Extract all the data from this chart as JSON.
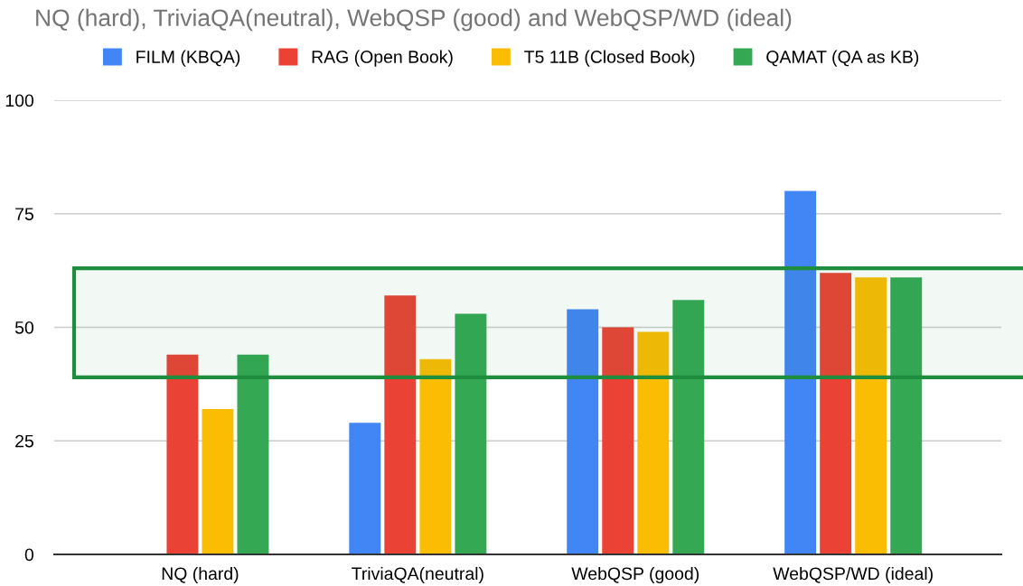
{
  "chart_data": {
    "type": "bar",
    "title": "NQ (hard), TriviaQA(neutral), WebQSP (good) and WebQSP/WD (ideal)",
    "categories": [
      "NQ (hard)",
      "TriviaQA(neutral)",
      "WebQSP (good)",
      "WebQSP/WD (ideal)"
    ],
    "series": [
      {
        "name": "FILM (KBQA)",
        "color": "#4285f4",
        "values": [
          null,
          29,
          54,
          80
        ]
      },
      {
        "name": "RAG (Open Book)",
        "color": "#ea4335",
        "values": [
          44,
          57,
          50,
          62
        ]
      },
      {
        "name": "T5 11B (Closed Book)",
        "color": "#fbbc04",
        "values": [
          32,
          43,
          49,
          61
        ]
      },
      {
        "name": "QAMAT (QA as KB)",
        "color": "#34a853",
        "values": [
          44,
          53,
          56,
          61
        ]
      }
    ],
    "ylim": [
      0,
      100
    ],
    "yticks": [
      0,
      25,
      50,
      75,
      100
    ],
    "grid": "y",
    "legend": "top",
    "bands": [
      {
        "axis": "y",
        "from": 39,
        "to": 63,
        "color": "#1e8e3e"
      }
    ]
  }
}
